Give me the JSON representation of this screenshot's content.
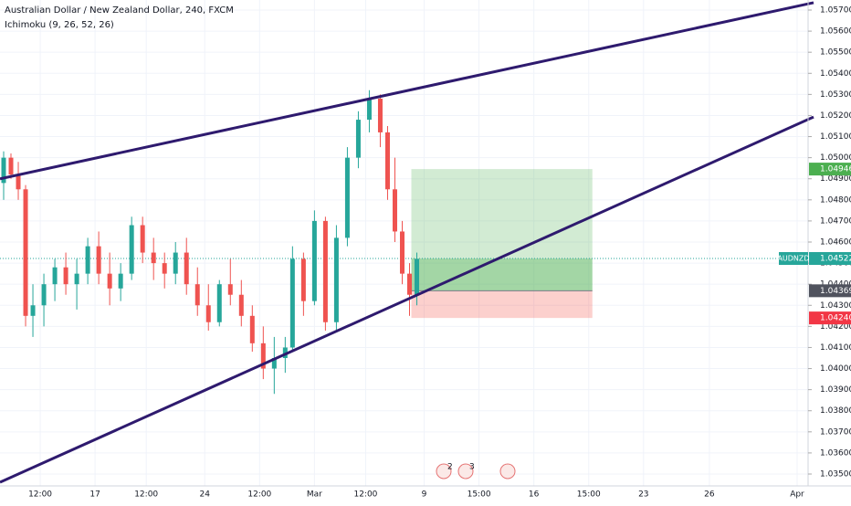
{
  "chart_data": {
    "type": "candlestick",
    "title": "Australian Dollar / New Zealand Dollar, 240, FXCM",
    "subtitle": "Ichimoku (9, 26, 52, 26)",
    "symbol": "AUDNZD",
    "up_color": "#26a69a",
    "down_color": "#ef5350",
    "grid": true,
    "xlim": [
      0,
      221
    ],
    "xticks": [
      {
        "value": 11,
        "label": "12:00"
      },
      {
        "value": 26,
        "label": "17"
      },
      {
        "value": 40,
        "label": "12:00"
      },
      {
        "value": 56,
        "label": "24"
      },
      {
        "value": 71,
        "label": "12:00"
      },
      {
        "value": 86,
        "label": "Mar"
      },
      {
        "value": 100,
        "label": "12:00"
      },
      {
        "value": 116,
        "label": "9"
      },
      {
        "value": 131,
        "label": "15:00"
      },
      {
        "value": 146,
        "label": "16"
      },
      {
        "value": 161,
        "label": "15:00"
      },
      {
        "value": 176,
        "label": "23"
      },
      {
        "value": 194,
        "label": "26"
      },
      {
        "value": 218,
        "label": "Apr"
      }
    ],
    "ylim": [
      1.035,
      1.057
    ],
    "yticks": [
      {
        "value": 1.035,
        "label": "1.03500"
      },
      {
        "value": 1.036,
        "label": "1.03600"
      },
      {
        "value": 1.037,
        "label": "1.03700"
      },
      {
        "value": 1.038,
        "label": "1.03800"
      },
      {
        "value": 1.039,
        "label": "1.03900"
      },
      {
        "value": 1.04,
        "label": "1.04000"
      },
      {
        "value": 1.041,
        "label": "1.04100"
      },
      {
        "value": 1.042,
        "label": "1.04200"
      },
      {
        "value": 1.043,
        "label": "1.04300"
      },
      {
        "value": 1.044,
        "label": "1.04400"
      },
      {
        "value": 1.045,
        "label": "1.04500"
      },
      {
        "value": 1.046,
        "label": "1.04600"
      },
      {
        "value": 1.047,
        "label": "1.04700"
      },
      {
        "value": 1.048,
        "label": "1.04800"
      },
      {
        "value": 1.049,
        "label": "1.04900"
      },
      {
        "value": 1.05,
        "label": "1.05000"
      },
      {
        "value": 1.051,
        "label": "1.05100"
      },
      {
        "value": 1.052,
        "label": "1.05200"
      },
      {
        "value": 1.053,
        "label": "1.05300"
      },
      {
        "value": 1.054,
        "label": "1.05400"
      },
      {
        "value": 1.055,
        "label": "1.05500"
      },
      {
        "value": 1.056,
        "label": "1.05600"
      },
      {
        "value": 1.057,
        "label": "1.05700"
      }
    ],
    "x": [
      1,
      3,
      5,
      7,
      9,
      12,
      15,
      18,
      21,
      24,
      27,
      30,
      33,
      36,
      39,
      42,
      45,
      48,
      51,
      54,
      57,
      60,
      63,
      66,
      69,
      72,
      75,
      78,
      80,
      83,
      86,
      89,
      92,
      95,
      98,
      101,
      104,
      106,
      108,
      110,
      112,
      114
    ],
    "open": [
      1.0488,
      1.05,
      1.0492,
      1.0485,
      1.0425,
      1.043,
      1.044,
      1.0448,
      1.044,
      1.0445,
      1.0458,
      1.0445,
      1.0438,
      1.0445,
      1.0468,
      1.0455,
      1.045,
      1.0445,
      1.0455,
      1.044,
      1.043,
      1.0422,
      1.044,
      1.0435,
      1.0425,
      1.0412,
      1.04,
      1.0405,
      1.041,
      1.0452,
      1.0432,
      1.047,
      1.0422,
      1.0462,
      1.05,
      1.0518,
      1.0528,
      1.0512,
      1.0485,
      1.0465,
      1.0445,
      1.0435
    ],
    "high": [
      1.0503,
      1.0502,
      1.0498,
      1.0487,
      1.044,
      1.0445,
      1.0452,
      1.0455,
      1.0452,
      1.0462,
      1.0465,
      1.0455,
      1.045,
      1.0472,
      1.0472,
      1.0462,
      1.0455,
      1.046,
      1.0462,
      1.0448,
      1.044,
      1.0442,
      1.0452,
      1.0442,
      1.043,
      1.042,
      1.0415,
      1.0415,
      1.0458,
      1.0455,
      1.0475,
      1.0472,
      1.0468,
      1.0505,
      1.0522,
      1.0532,
      1.053,
      1.0515,
      1.05,
      1.047,
      1.045,
      1.0455
    ],
    "low": [
      1.048,
      1.049,
      1.048,
      1.042,
      1.0415,
      1.042,
      1.0432,
      1.0435,
      1.0428,
      1.044,
      1.044,
      1.043,
      1.0432,
      1.0442,
      1.045,
      1.0442,
      1.0438,
      1.044,
      1.0435,
      1.0425,
      1.0418,
      1.042,
      1.043,
      1.042,
      1.0408,
      1.0395,
      1.0388,
      1.0398,
      1.0408,
      1.0425,
      1.043,
      1.0418,
      1.0418,
      1.0458,
      1.0495,
      1.0512,
      1.0505,
      1.048,
      1.046,
      1.044,
      1.0425,
      1.043
    ],
    "close": [
      1.05,
      1.0492,
      1.0485,
      1.0425,
      1.043,
      1.044,
      1.0448,
      1.044,
      1.0445,
      1.0458,
      1.0445,
      1.0438,
      1.0445,
      1.0468,
      1.0455,
      1.045,
      1.0445,
      1.0455,
      1.044,
      1.043,
      1.0422,
      1.044,
      1.0435,
      1.0425,
      1.0412,
      1.04,
      1.0405,
      1.041,
      1.0452,
      1.0432,
      1.047,
      1.0422,
      1.0462,
      1.05,
      1.0518,
      1.0528,
      1.0512,
      1.0485,
      1.0465,
      1.0445,
      1.0435,
      1.0452
    ],
    "last_price": 1.04522,
    "last_price_label": "1.04522",
    "trendlines": [
      {
        "x": [
          0,
          222.5
        ],
        "y": [
          1.049,
          1.05735
        ],
        "color": "#2e1a6e"
      },
      {
        "x": [
          0,
          222.5
        ],
        "y": [
          1.03461,
          1.05193
        ],
        "color": "#2e1a6e"
      }
    ],
    "position": {
      "x": [
        112.5,
        162
      ],
      "target": 1.04946,
      "target_label": "1.04946",
      "entry": 1.04369,
      "entry_label": "1.04369",
      "stop": 1.0424,
      "stop_label": "1.04240"
    },
    "events": [
      "2",
      "3"
    ]
  }
}
